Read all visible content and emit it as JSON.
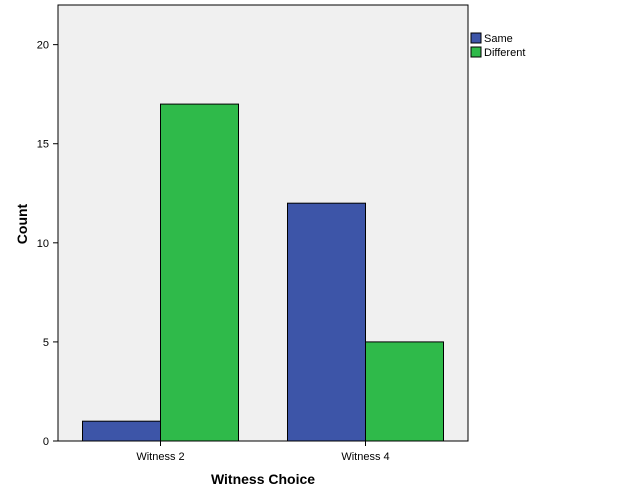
{
  "chart_data": {
    "type": "bar",
    "categories": [
      "Witness 2",
      "Witness 4"
    ],
    "series": [
      {
        "name": "Same",
        "values": [
          1,
          12
        ],
        "color": "#3d55a8"
      },
      {
        "name": "Different",
        "values": [
          17,
          5
        ],
        "color": "#2fba4a"
      }
    ],
    "xlabel": "Witness Choice",
    "ylabel": "Count",
    "ylim": [
      0,
      22
    ],
    "yticks": [
      0,
      5,
      10,
      15,
      20
    ],
    "plot_background": "#f0f0f0",
    "grid": false,
    "legend_position": "top-right"
  }
}
